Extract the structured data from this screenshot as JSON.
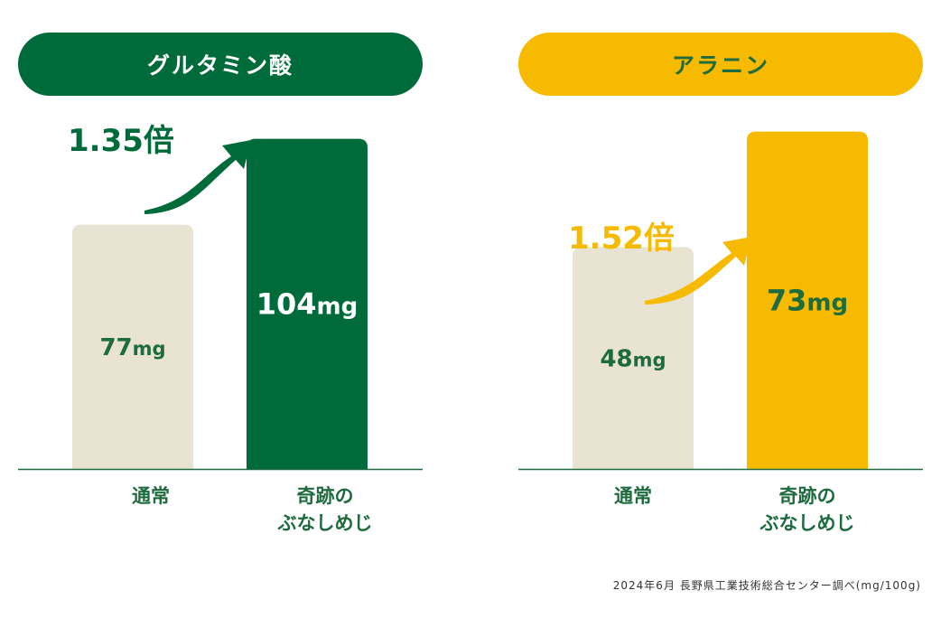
{
  "colors": {
    "green": "#006b3a",
    "yellow": "#f6bb00",
    "beige": "#e9e3d4",
    "label_green": "#1e6b3f",
    "white": "#ffffff"
  },
  "source_note": "2024年6月 長野県工業技術総合センター調べ(mg/100g)",
  "chart_data": [
    {
      "type": "bar",
      "title": "グルタミン酸",
      "title_bg": "#006b3a",
      "title_color": "#ffffff",
      "accent": "#006b3a",
      "categories": [
        "通常",
        "奇跡の\nぶなしめじ"
      ],
      "values": [
        77,
        104
      ],
      "unit": "mg",
      "bar_colors": [
        "#e9e3d4",
        "#006b3a"
      ],
      "value_label_colors": [
        "#1e6b3f",
        "#ffffff"
      ],
      "ratio_label": "1.35倍",
      "ylim": [
        0,
        115
      ]
    },
    {
      "type": "bar",
      "title": "アラニン",
      "title_bg": "#f6bb00",
      "title_color": "#1e6b3f",
      "accent": "#f6bb00",
      "categories": [
        "通常",
        "奇跡の\nぶなしめじ"
      ],
      "values": [
        48,
        73
      ],
      "unit": "mg",
      "bar_colors": [
        "#e9e3d4",
        "#f6bb00"
      ],
      "value_label_colors": [
        "#1e6b3f",
        "#1e6b3f"
      ],
      "ratio_label": "1.52倍",
      "ylim": [
        0,
        79
      ]
    }
  ]
}
